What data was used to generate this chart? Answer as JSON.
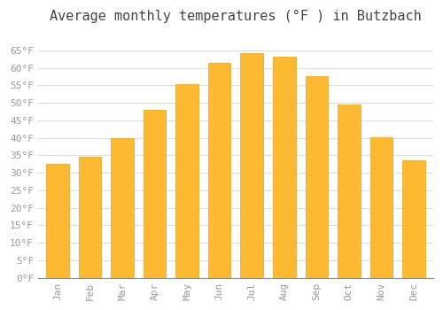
{
  "title": "Average monthly temperatures (°F ) in Butzbach",
  "months": [
    "Jan",
    "Feb",
    "Mar",
    "Apr",
    "May",
    "Jun",
    "Jul",
    "Aug",
    "Sep",
    "Oct",
    "Nov",
    "Dec"
  ],
  "values": [
    32.5,
    34.7,
    39.9,
    48.0,
    55.4,
    61.5,
    64.2,
    63.1,
    57.7,
    49.5,
    40.1,
    33.6
  ],
  "bar_color": "#FDB931",
  "bar_edge_color": "#E8A020",
  "ylim": [
    0,
    70
  ],
  "yticks": [
    0,
    5,
    10,
    15,
    20,
    25,
    30,
    35,
    40,
    45,
    50,
    55,
    60,
    65
  ],
  "background_color": "#ffffff",
  "plot_bg_color": "#ffffff",
  "grid_color": "#dddddd",
  "title_fontsize": 11,
  "tick_fontsize": 8,
  "font_family": "monospace",
  "tick_color": "#999999"
}
